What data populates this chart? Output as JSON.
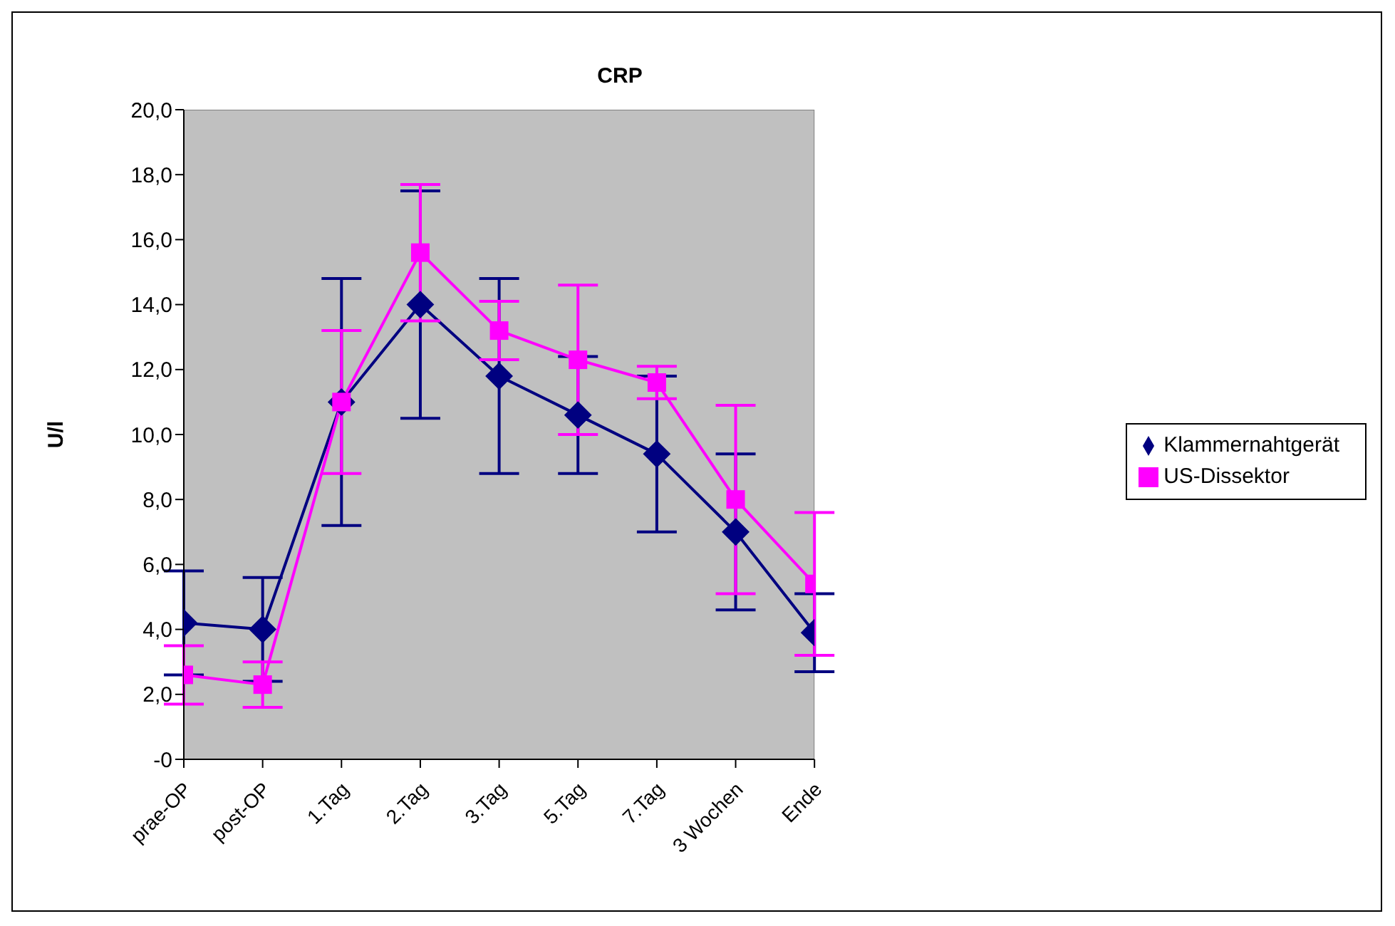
{
  "chart_data": {
    "type": "line",
    "title": "CRP",
    "ylabel": "U/l",
    "categories": [
      "prae-OP",
      "post-OP",
      "1.Tag",
      "2.Tag",
      "3.Tag",
      "5.Tag",
      "7.Tag",
      "3 Wochen",
      "Ende"
    ],
    "series": [
      {
        "name": "Klammernahtgerät",
        "color": "#000080",
        "marker": "diamond",
        "values": [
          4.2,
          4.0,
          11.0,
          14.0,
          11.8,
          10.6,
          9.4,
          7.0,
          3.9
        ],
        "errors": [
          1.6,
          1.6,
          3.8,
          3.5,
          3.0,
          1.8,
          2.4,
          2.4,
          1.2
        ]
      },
      {
        "name": "US-Dissektor",
        "color": "#ff00ff",
        "marker": "square",
        "values": [
          2.6,
          2.3,
          11.0,
          15.6,
          13.2,
          12.3,
          11.6,
          8.0,
          5.4
        ],
        "errors": [
          0.9,
          0.7,
          2.2,
          2.1,
          0.9,
          2.3,
          0.5,
          2.9,
          2.2
        ]
      }
    ],
    "ylim": [
      0,
      20
    ],
    "yticks": [
      {
        "value": 0,
        "label": "-0"
      },
      {
        "value": 2,
        "label": "2,0"
      },
      {
        "value": 4,
        "label": "4,0"
      },
      {
        "value": 6,
        "label": "6,0"
      },
      {
        "value": 8,
        "label": "8,0"
      },
      {
        "value": 10,
        "label": "10,0"
      },
      {
        "value": 12,
        "label": "12,0"
      },
      {
        "value": 14,
        "label": "14,0"
      },
      {
        "value": 16,
        "label": "16,0"
      },
      {
        "value": 18,
        "label": "18,0"
      },
      {
        "value": 20,
        "label": "20,0"
      }
    ],
    "grid": false,
    "legend": "right"
  }
}
